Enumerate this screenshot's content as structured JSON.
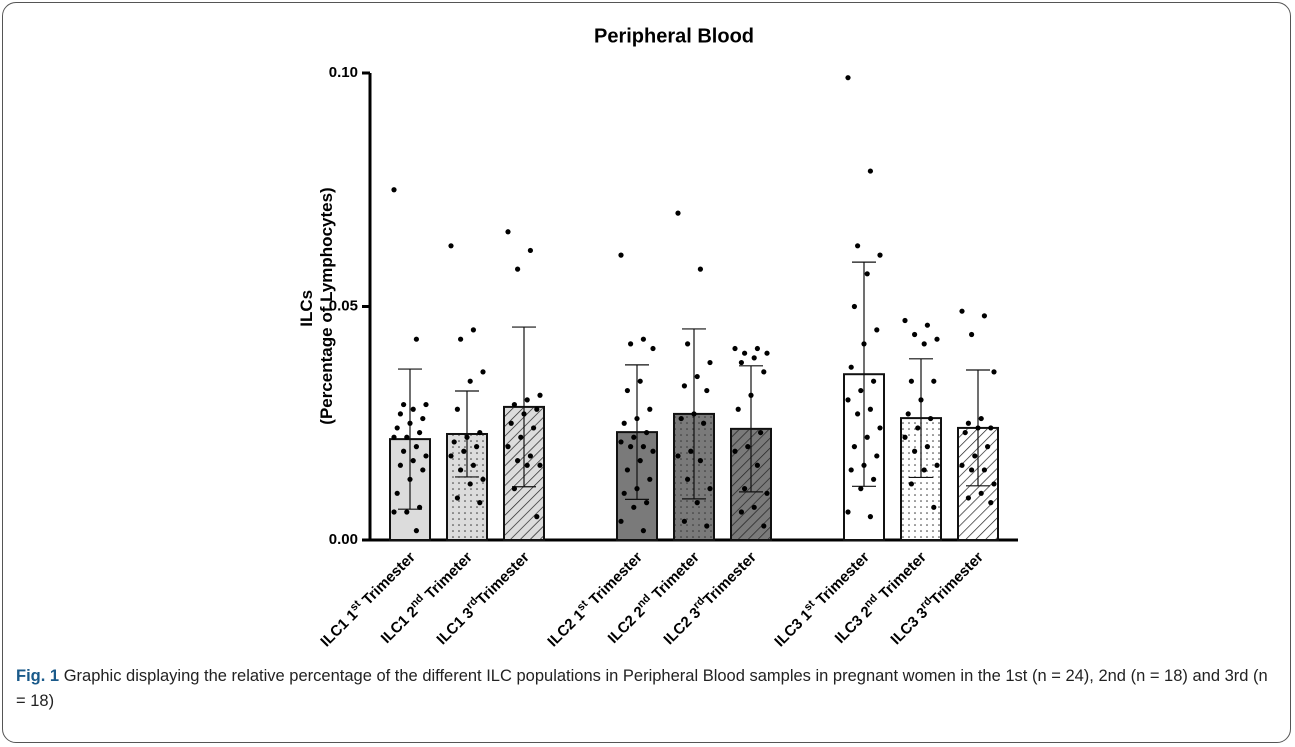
{
  "chart_data": {
    "type": "bar",
    "title": "Peripheral Blood",
    "y_label": [
      "ILCs",
      "(Percentage of Lymphocytes)"
    ],
    "categories": [
      "ILC1 1st Trimester",
      "ILC1 2nd Trimeter",
      "ILC1 3rdTrimester",
      "ILC2 1st Trimester",
      "ILC2 2nd Trimeter",
      "ILC2 3rdTrimester",
      "ILC3 1st Trimester",
      "ILC3 2nd Trimeter",
      "ILC3 3rdTrimester"
    ],
    "groups": [
      [
        0,
        1,
        2
      ],
      [
        3,
        4,
        5
      ],
      [
        6,
        7,
        8
      ]
    ],
    "colors": [
      "#dcdcdc",
      "#dcdcdc",
      "#dcdcdc",
      "#7a7a7a",
      "#7a7a7a",
      "#7a7a7a",
      "#ffffff",
      "#ffffff",
      "#ffffff"
    ],
    "patterns": [
      "none",
      "dots",
      "hatch",
      "none",
      "dots",
      "hatch",
      "none",
      "dots",
      "hatch"
    ],
    "values": [
      0.0216,
      0.0227,
      0.0285,
      0.0231,
      0.027,
      0.0238,
      0.0355,
      0.0261,
      0.024
    ],
    "errors": [
      0.015,
      0.0092,
      0.0171,
      0.0144,
      0.0182,
      0.0135,
      0.024,
      0.0127,
      0.0124
    ],
    "points": [
      [
        0.075,
        0.043,
        0.029,
        0.029,
        0.028,
        0.027,
        0.026,
        0.025,
        0.024,
        0.023,
        0.022,
        0.022,
        0.02,
        0.019,
        0.018,
        0.017,
        0.016,
        0.015,
        0.013,
        0.01,
        0.007,
        0.006,
        0.006,
        0.002
      ],
      [
        0.063,
        0.045,
        0.043,
        0.036,
        0.034,
        0.028,
        0.023,
        0.022,
        0.021,
        0.02,
        0.019,
        0.018,
        0.016,
        0.015,
        0.013,
        0.012,
        0.009,
        0.008
      ],
      [
        0.066,
        0.062,
        0.058,
        0.031,
        0.03,
        0.029,
        0.028,
        0.027,
        0.025,
        0.024,
        0.022,
        0.02,
        0.018,
        0.017,
        0.016,
        0.016,
        0.011,
        0.005
      ],
      [
        0.061,
        0.043,
        0.042,
        0.041,
        0.034,
        0.032,
        0.028,
        0.026,
        0.025,
        0.023,
        0.022,
        0.021,
        0.02,
        0.02,
        0.019,
        0.017,
        0.015,
        0.013,
        0.011,
        0.01,
        0.008,
        0.007,
        0.004,
        0.002
      ],
      [
        0.07,
        0.058,
        0.042,
        0.038,
        0.035,
        0.033,
        0.032,
        0.027,
        0.026,
        0.025,
        0.019,
        0.018,
        0.017,
        0.013,
        0.011,
        0.008,
        0.004,
        0.003
      ],
      [
        0.041,
        0.041,
        0.04,
        0.04,
        0.039,
        0.038,
        0.036,
        0.031,
        0.028,
        0.023,
        0.02,
        0.019,
        0.016,
        0.011,
        0.01,
        0.007,
        0.006,
        0.003
      ],
      [
        0.099,
        0.079,
        0.063,
        0.061,
        0.057,
        0.05,
        0.045,
        0.042,
        0.037,
        0.034,
        0.032,
        0.03,
        0.028,
        0.027,
        0.024,
        0.022,
        0.02,
        0.018,
        0.016,
        0.015,
        0.013,
        0.011,
        0.006,
        0.005
      ],
      [
        0.047,
        0.046,
        0.044,
        0.043,
        0.042,
        0.034,
        0.034,
        0.03,
        0.027,
        0.026,
        0.024,
        0.022,
        0.02,
        0.019,
        0.016,
        0.015,
        0.012,
        0.007
      ],
      [
        0.049,
        0.048,
        0.044,
        0.036,
        0.026,
        0.025,
        0.024,
        0.024,
        0.023,
        0.02,
        0.018,
        0.016,
        0.015,
        0.015,
        0.012,
        0.01,
        0.009,
        0.008
      ]
    ],
    "ylim": [
      0,
      0.1
    ],
    "yticks": [
      {
        "value": 0,
        "label": "0.00"
      },
      {
        "value": 0.05,
        "label": "0.05"
      },
      {
        "value": 0.1,
        "label": "0.10"
      }
    ]
  },
  "caption": {
    "label": "Fig. 1",
    "text": "Graphic displaying the relative percentage of the different ILC populations in Peripheral Blood samples in pregnant women in the 1st (n = 24), 2nd (n = 18) and 3rd (n = 18)"
  }
}
